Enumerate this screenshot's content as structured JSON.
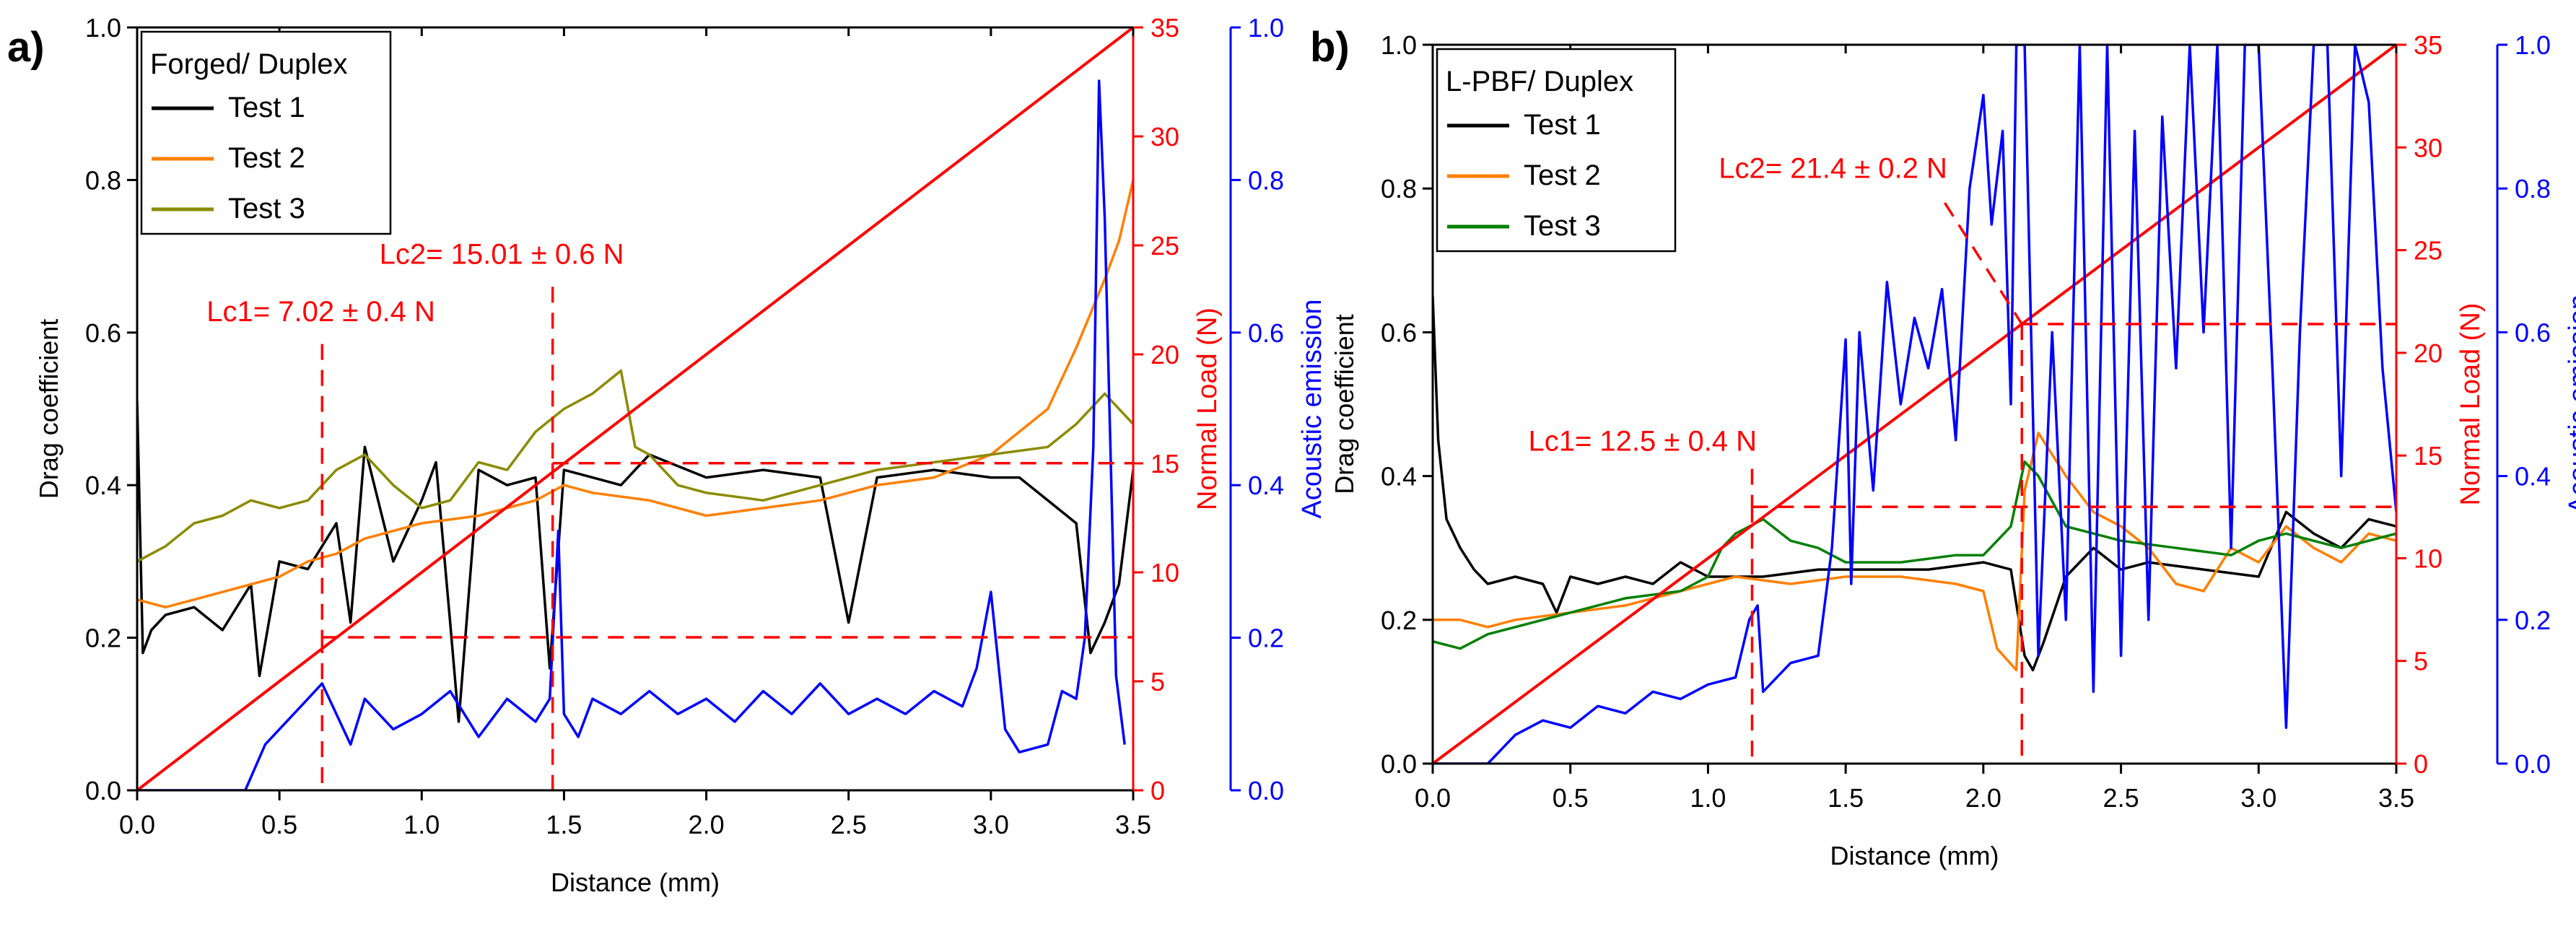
{
  "figure": {
    "panel_labels": [
      "a)",
      "b)"
    ]
  },
  "colors": {
    "axes": "#000000",
    "load": "#ff0000",
    "ae": "#0000ff",
    "test1": "#000000",
    "test2": "#ff7f00",
    "test3_a": "#8b8b00",
    "test3_b": "#008000"
  },
  "chart_data": [
    {
      "type": "line",
      "panel": "a)",
      "legend_title": "Forged/ Duplex",
      "xlabel": "Distance (mm)",
      "ylabel": "Drag coefficient",
      "y2label": "Normal Load (N)",
      "y3label": "Acoustic emission",
      "xlim": [
        0,
        3.5
      ],
      "ylim": [
        0,
        1.0
      ],
      "y2lim": [
        0,
        35
      ],
      "y3lim": [
        0,
        1.0
      ],
      "xticks": [
        "0.0",
        "0.5",
        "1.0",
        "1.5",
        "2.0",
        "2.5",
        "3.0",
        "3.5"
      ],
      "yticks": [
        "0.0",
        "0.2",
        "0.4",
        "0.6",
        "0.8",
        "1.0"
      ],
      "y2ticks": [
        "0",
        "5",
        "10",
        "15",
        "20",
        "25",
        "30",
        "35"
      ],
      "y3ticks": [
        "0.0",
        "0.2",
        "0.4",
        "0.6",
        "0.8",
        "1.0"
      ],
      "annotations": [
        {
          "text": "Lc1= 7.02 ± 0.4 N",
          "x": 0.65,
          "load": 7.02
        },
        {
          "text": "Lc2= 15.01 ± 0.6 N",
          "x": 1.46,
          "load": 15.01
        }
      ],
      "series": [
        {
          "name": "Test 1",
          "color": "#000000",
          "axis": "drag",
          "x": [
            0.0,
            0.02,
            0.05,
            0.1,
            0.2,
            0.3,
            0.4,
            0.43,
            0.5,
            0.6,
            0.7,
            0.75,
            0.8,
            0.9,
            1.0,
            1.05,
            1.1,
            1.13,
            1.2,
            1.3,
            1.4,
            1.45,
            1.5,
            1.6,
            1.7,
            1.8,
            2.0,
            2.2,
            2.4,
            2.5,
            2.6,
            2.8,
            3.0,
            3.1,
            3.2,
            3.3,
            3.35,
            3.4,
            3.45,
            3.5
          ],
          "y": [
            0.51,
            0.18,
            0.21,
            0.23,
            0.24,
            0.21,
            0.27,
            0.15,
            0.3,
            0.29,
            0.35,
            0.22,
            0.45,
            0.3,
            0.38,
            0.43,
            0.22,
            0.09,
            0.42,
            0.4,
            0.41,
            0.16,
            0.42,
            0.41,
            0.4,
            0.44,
            0.41,
            0.42,
            0.41,
            0.22,
            0.41,
            0.42,
            0.41,
            0.41,
            0.38,
            0.35,
            0.18,
            0.22,
            0.27,
            0.42
          ]
        },
        {
          "name": "Test 2",
          "color": "#ff7f00",
          "axis": "drag",
          "x": [
            0.0,
            0.1,
            0.2,
            0.3,
            0.4,
            0.5,
            0.6,
            0.7,
            0.8,
            0.9,
            1.0,
            1.2,
            1.4,
            1.5,
            1.6,
            1.8,
            2.0,
            2.2,
            2.4,
            2.6,
            2.8,
            3.0,
            3.2,
            3.3,
            3.4,
            3.45,
            3.5
          ],
          "y": [
            0.25,
            0.24,
            0.25,
            0.26,
            0.27,
            0.28,
            0.3,
            0.31,
            0.33,
            0.34,
            0.35,
            0.36,
            0.38,
            0.4,
            0.39,
            0.38,
            0.36,
            0.37,
            0.38,
            0.4,
            0.41,
            0.44,
            0.5,
            0.58,
            0.67,
            0.72,
            0.8
          ]
        },
        {
          "name": "Test 3",
          "color": "#8b8b00",
          "axis": "drag",
          "x": [
            0.0,
            0.1,
            0.2,
            0.3,
            0.4,
            0.5,
            0.6,
            0.7,
            0.8,
            0.9,
            1.0,
            1.1,
            1.2,
            1.3,
            1.4,
            1.5,
            1.6,
            1.7,
            1.75,
            1.8,
            1.9,
            2.0,
            2.2,
            2.4,
            2.6,
            2.8,
            3.0,
            3.2,
            3.3,
            3.4,
            3.5
          ],
          "y": [
            0.3,
            0.32,
            0.35,
            0.36,
            0.38,
            0.37,
            0.38,
            0.42,
            0.44,
            0.4,
            0.37,
            0.38,
            0.43,
            0.42,
            0.47,
            0.5,
            0.52,
            0.55,
            0.45,
            0.44,
            0.4,
            0.39,
            0.38,
            0.4,
            0.42,
            0.43,
            0.44,
            0.45,
            0.48,
            0.52,
            0.48
          ]
        },
        {
          "name": "Normal Load",
          "color": "#ff0000",
          "axis": "load",
          "x": [
            0,
            3.5
          ],
          "y": [
            0,
            35
          ]
        },
        {
          "name": "Acoustic emission",
          "color": "#0000ff",
          "axis": "ae",
          "x": [
            0.0,
            0.38,
            0.45,
            0.5,
            0.55,
            0.6,
            0.65,
            0.7,
            0.75,
            0.8,
            0.9,
            1.0,
            1.1,
            1.2,
            1.3,
            1.4,
            1.45,
            1.48,
            1.5,
            1.55,
            1.6,
            1.7,
            1.8,
            1.9,
            2.0,
            2.1,
            2.2,
            2.3,
            2.4,
            2.5,
            2.6,
            2.7,
            2.8,
            2.9,
            2.95,
            3.0,
            3.05,
            3.1,
            3.2,
            3.25,
            3.3,
            3.33,
            3.36,
            3.38,
            3.4,
            3.44,
            3.47
          ],
          "y": [
            0.0,
            0.0,
            0.06,
            0.08,
            0.1,
            0.12,
            0.14,
            0.1,
            0.06,
            0.12,
            0.08,
            0.1,
            0.13,
            0.07,
            0.12,
            0.09,
            0.12,
            0.34,
            0.1,
            0.07,
            0.12,
            0.1,
            0.13,
            0.1,
            0.12,
            0.09,
            0.13,
            0.1,
            0.14,
            0.1,
            0.12,
            0.1,
            0.13,
            0.11,
            0.16,
            0.26,
            0.08,
            0.05,
            0.06,
            0.13,
            0.12,
            0.2,
            0.45,
            0.93,
            0.75,
            0.15,
            0.06
          ]
        }
      ]
    },
    {
      "type": "line",
      "panel": "b)",
      "legend_title": "L-PBF/ Duplex",
      "xlabel": "Distance (mm)",
      "ylabel": "Drag coefficient",
      "y2label": "Normal Load (N)",
      "y3label": "Acoustic emission",
      "xlim": [
        0,
        3.5
      ],
      "ylim": [
        0,
        1.0
      ],
      "y2lim": [
        0,
        35
      ],
      "y3lim": [
        0,
        1.0
      ],
      "xticks": [
        "0.0",
        "0.5",
        "1.0",
        "1.5",
        "2.0",
        "2.5",
        "3.0",
        "3.5"
      ],
      "yticks": [
        "0.0",
        "0.2",
        "0.4",
        "0.6",
        "0.8",
        "1.0"
      ],
      "y2ticks": [
        "0",
        "5",
        "10",
        "15",
        "20",
        "25",
        "30",
        "35"
      ],
      "y3ticks": [
        "0.0",
        "0.2",
        "0.4",
        "0.6",
        "0.8",
        "1.0"
      ],
      "annotations": [
        {
          "text": "Lc1= 12.5 ± 0.4 N",
          "x": 1.16,
          "load": 12.5
        },
        {
          "text": "Lc2= 21.4 ± 0.2 N",
          "x": 2.14,
          "load": 21.4
        }
      ],
      "series": [
        {
          "name": "Test 1",
          "color": "#000000",
          "axis": "drag",
          "x": [
            0.0,
            0.02,
            0.05,
            0.1,
            0.15,
            0.2,
            0.3,
            0.4,
            0.45,
            0.5,
            0.6,
            0.7,
            0.8,
            0.9,
            1.0,
            1.2,
            1.4,
            1.6,
            1.8,
            2.0,
            2.1,
            2.15,
            2.18,
            2.22,
            2.3,
            2.4,
            2.5,
            2.6,
            2.8,
            3.0,
            3.1,
            3.2,
            3.3,
            3.4,
            3.5
          ],
          "y": [
            0.65,
            0.45,
            0.34,
            0.3,
            0.27,
            0.25,
            0.26,
            0.25,
            0.21,
            0.26,
            0.25,
            0.26,
            0.25,
            0.28,
            0.26,
            0.26,
            0.27,
            0.27,
            0.27,
            0.28,
            0.27,
            0.15,
            0.13,
            0.17,
            0.26,
            0.3,
            0.27,
            0.28,
            0.27,
            0.26,
            0.35,
            0.32,
            0.3,
            0.34,
            0.33
          ]
        },
        {
          "name": "Test 2",
          "color": "#ff7f00",
          "axis": "drag",
          "x": [
            0.0,
            0.1,
            0.2,
            0.3,
            0.5,
            0.7,
            0.9,
            1.1,
            1.3,
            1.5,
            1.7,
            1.9,
            2.0,
            2.05,
            2.12,
            2.15,
            2.2,
            2.3,
            2.4,
            2.5,
            2.6,
            2.7,
            2.8,
            2.9,
            3.0,
            3.1,
            3.2,
            3.3,
            3.4,
            3.5
          ],
          "y": [
            0.2,
            0.2,
            0.19,
            0.2,
            0.21,
            0.22,
            0.24,
            0.26,
            0.25,
            0.26,
            0.26,
            0.25,
            0.24,
            0.16,
            0.13,
            0.38,
            0.46,
            0.4,
            0.35,
            0.33,
            0.3,
            0.25,
            0.24,
            0.3,
            0.28,
            0.33,
            0.3,
            0.28,
            0.32,
            0.31
          ]
        },
        {
          "name": "Test 3",
          "color": "#008000",
          "axis": "drag",
          "x": [
            0.0,
            0.1,
            0.2,
            0.3,
            0.5,
            0.7,
            0.9,
            1.0,
            1.05,
            1.1,
            1.2,
            1.3,
            1.4,
            1.5,
            1.7,
            1.9,
            2.0,
            2.1,
            2.15,
            2.2,
            2.3,
            2.5,
            2.7,
            2.9,
            3.0,
            3.1,
            3.3,
            3.5
          ],
          "y": [
            0.17,
            0.16,
            0.18,
            0.19,
            0.21,
            0.23,
            0.24,
            0.26,
            0.3,
            0.32,
            0.34,
            0.31,
            0.3,
            0.28,
            0.28,
            0.29,
            0.29,
            0.33,
            0.42,
            0.4,
            0.33,
            0.31,
            0.3,
            0.29,
            0.31,
            0.32,
            0.3,
            0.32
          ]
        },
        {
          "name": "Normal Load",
          "color": "#ff0000",
          "axis": "load",
          "x": [
            0,
            3.5
          ],
          "y": [
            0,
            35
          ]
        },
        {
          "name": "Acoustic emission",
          "color": "#0000ff",
          "axis": "ae",
          "x": [
            0.0,
            0.2,
            0.25,
            0.3,
            0.4,
            0.5,
            0.6,
            0.7,
            0.8,
            0.9,
            1.0,
            1.1,
            1.15,
            1.18,
            1.2,
            1.3,
            1.4,
            1.45,
            1.5,
            1.52,
            1.55,
            1.6,
            1.65,
            1.7,
            1.75,
            1.8,
            1.85,
            1.9,
            1.95,
            2.0,
            2.03,
            2.07,
            2.1,
            2.12,
            2.15,
            2.2,
            2.25,
            2.3,
            2.35,
            2.4,
            2.45,
            2.5,
            2.55,
            2.6,
            2.65,
            2.7,
            2.75,
            2.8,
            2.85,
            2.9,
            2.95,
            3.0,
            3.05,
            3.1,
            3.15,
            3.2,
            3.25,
            3.3,
            3.35,
            3.4,
            3.45,
            3.5
          ],
          "y": [
            0.0,
            0.0,
            0.02,
            0.04,
            0.06,
            0.05,
            0.08,
            0.07,
            0.1,
            0.09,
            0.11,
            0.12,
            0.2,
            0.22,
            0.1,
            0.14,
            0.15,
            0.3,
            0.59,
            0.25,
            0.6,
            0.38,
            0.67,
            0.5,
            0.62,
            0.55,
            0.66,
            0.45,
            0.8,
            0.93,
            0.75,
            0.88,
            0.5,
            1.0,
            1.0,
            0.15,
            0.6,
            0.2,
            1.0,
            0.1,
            1.0,
            0.15,
            0.88,
            0.2,
            0.9,
            0.55,
            1.0,
            0.6,
            1.0,
            0.3,
            1.0,
            1.0,
            0.55,
            0.05,
            0.6,
            1.0,
            1.0,
            0.4,
            1.0,
            0.92,
            0.55,
            0.35
          ]
        }
      ]
    }
  ]
}
